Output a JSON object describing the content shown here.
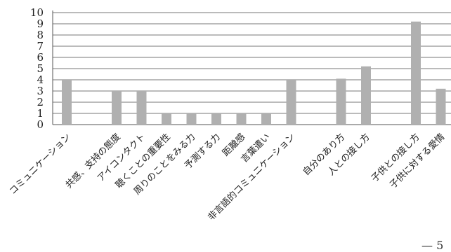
{
  "chart_data": {
    "type": "bar",
    "categories": [
      "コミュニケーション",
      "",
      "共感、支持の態度",
      "アイコンタクト",
      "聴くことの重要性",
      "周りのことをみる力",
      "予測する力",
      "距離感",
      "言葉遣い",
      "非言語的コミュニケーション",
      "",
      "自分のあり方",
      "人との接し方",
      "",
      "子供との接し方",
      "子供に対する愛情"
    ],
    "values": [
      4,
      null,
      3,
      3,
      1,
      1,
      1,
      1,
      1,
      4,
      null,
      4.1,
      5.2,
      null,
      9.2,
      3.2
    ],
    "ylim": [
      0,
      10
    ],
    "yticks": [
      0,
      1,
      2,
      3,
      4,
      5,
      6,
      7,
      8,
      9,
      10
    ],
    "grid": true,
    "bar_color": "#b0b0b0",
    "title": "",
    "xlabel": "",
    "ylabel": ""
  },
  "corner_text": "— 5"
}
